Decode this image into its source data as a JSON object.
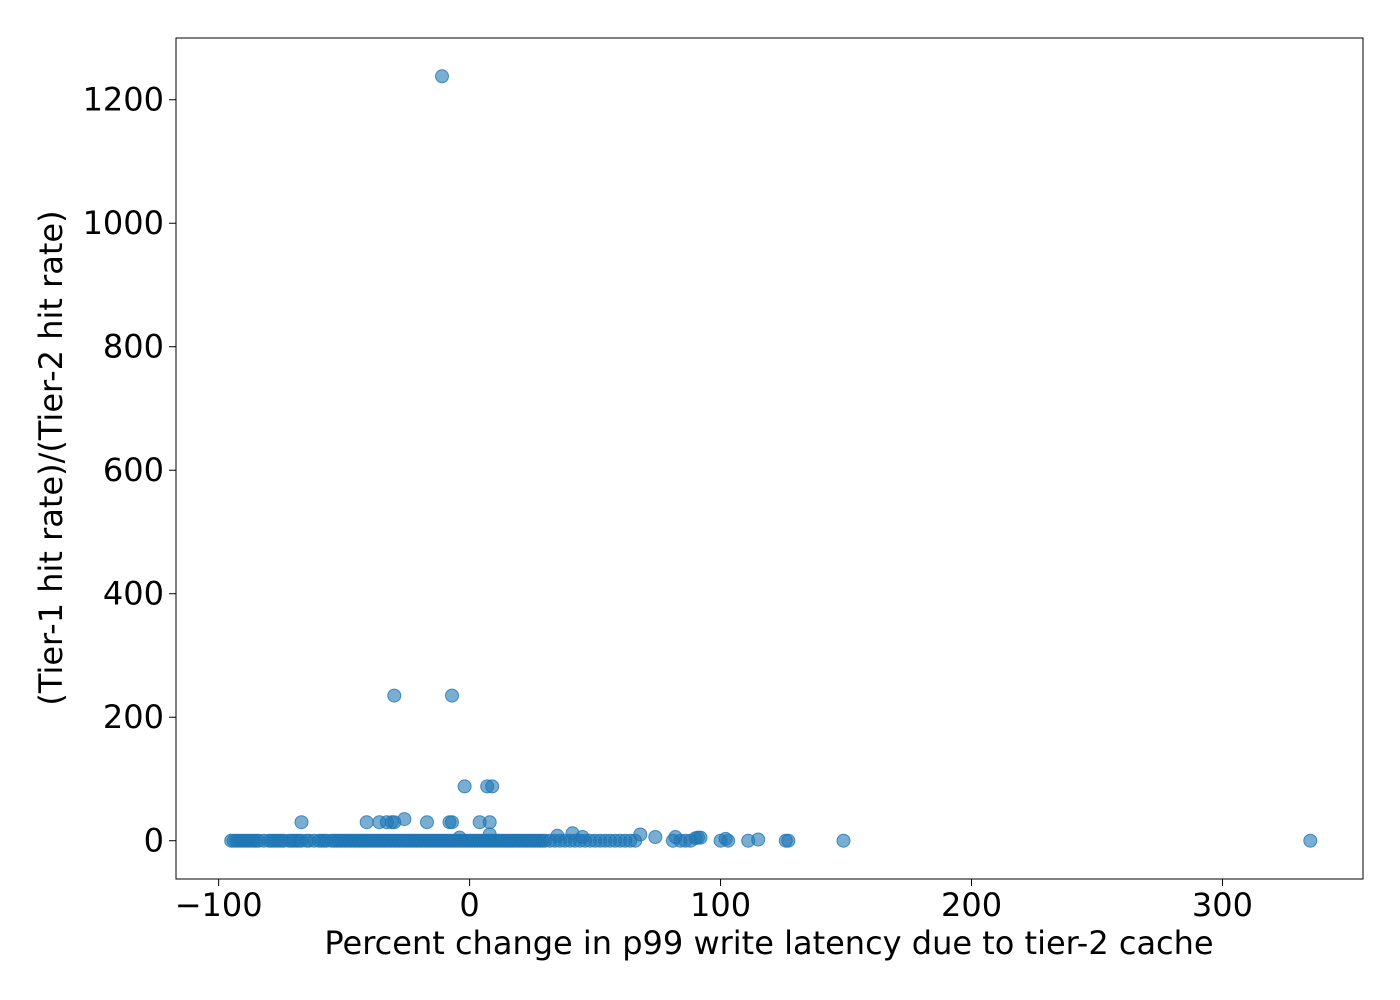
{
  "chart_data": {
    "type": "scatter",
    "title": "",
    "xlabel": "Percent change in p99 write latency due to tier-2 cache",
    "ylabel": "(Tier-1 hit rate)/(Tier-2 hit rate)",
    "xlim": [
      -117,
      356
    ],
    "ylim": [
      -62,
      1300
    ],
    "xticks": [
      -100,
      0,
      100,
      200,
      300
    ],
    "xtick_labels": [
      "−100",
      "0",
      "100",
      "200",
      "300"
    ],
    "yticks": [
      0,
      200,
      400,
      600,
      800,
      1000,
      1200
    ],
    "ytick_labels": [
      "0",
      "200",
      "400",
      "600",
      "800",
      "1000",
      "1200"
    ],
    "grid": false,
    "legend": "none",
    "marker_color": "#1f77b4",
    "series": [
      {
        "x": [
          -95,
          -94,
          -93,
          -92,
          -91,
          -90,
          -89,
          -88,
          -87,
          -86,
          -85,
          -84,
          -82,
          -80,
          -79,
          -78,
          -77,
          -76,
          -75,
          -74,
          -72,
          -71,
          -70,
          -69,
          -68,
          -67,
          -65,
          -64,
          -62,
          -60,
          -59,
          -58,
          -57,
          -55,
          -54,
          -53,
          -52,
          -51,
          -50,
          -49,
          -48,
          -47,
          -46,
          -45,
          -44,
          -43,
          -42,
          -41,
          -40,
          -39,
          -38,
          -37,
          -36,
          -35,
          -34,
          -33,
          -32,
          -31,
          -30,
          -29,
          -28,
          -27,
          -26,
          -25,
          -24,
          -23,
          -22,
          -21,
          -20,
          -19,
          -18,
          -17,
          -16,
          -15,
          -14,
          -13,
          -12,
          -11,
          -10,
          -9,
          -8,
          -7,
          -6,
          -5,
          -4,
          -3,
          -2,
          -1,
          0,
          1,
          2,
          3,
          4,
          5,
          6,
          7,
          8,
          9,
          10,
          11,
          12,
          13,
          14,
          15,
          16,
          17,
          18,
          19,
          20,
          21,
          22,
          23,
          24,
          25,
          26,
          27,
          28,
          29,
          30,
          32,
          34,
          36,
          38,
          40,
          42,
          44,
          46,
          48,
          50,
          52,
          54,
          56,
          58,
          60,
          62,
          64,
          66,
          81,
          84,
          86,
          88,
          100,
          103,
          111,
          126,
          127,
          149,
          335,
          -67,
          -41,
          -36,
          -33,
          -31,
          -30,
          -26,
          -17,
          -8,
          -7,
          4,
          8,
          35,
          41,
          45,
          68,
          74,
          82,
          90,
          91,
          92,
          102,
          115,
          -11,
          -30,
          -7,
          -2,
          7,
          9,
          -4,
          8
        ],
        "y": [
          0,
          0,
          0,
          0,
          0,
          0,
          0,
          0,
          0,
          0,
          0,
          0,
          0,
          0,
          0,
          0,
          0,
          0,
          0,
          0,
          0,
          0,
          0,
          0,
          0,
          0,
          0,
          0,
          0,
          0,
          0,
          0,
          0,
          0,
          0,
          0,
          0,
          0,
          0,
          0,
          0,
          0,
          0,
          0,
          0,
          0,
          0,
          0,
          0,
          0,
          0,
          0,
          0,
          0,
          0,
          0,
          0,
          0,
          0,
          0,
          0,
          0,
          0,
          0,
          0,
          0,
          0,
          0,
          0,
          0,
          0,
          0,
          0,
          0,
          0,
          0,
          0,
          0,
          0,
          0,
          0,
          0,
          0,
          0,
          0,
          0,
          0,
          0,
          0,
          0,
          0,
          0,
          0,
          0,
          0,
          0,
          0,
          0,
          0,
          0,
          0,
          0,
          0,
          0,
          0,
          0,
          0,
          0,
          0,
          0,
          0,
          0,
          0,
          0,
          0,
          0,
          0,
          0,
          0,
          0,
          0,
          0,
          0,
          0,
          0,
          0,
          0,
          0,
          0,
          0,
          0,
          0,
          0,
          0,
          0,
          0,
          0,
          0,
          0,
          0,
          0,
          0,
          0,
          0,
          0,
          0,
          0,
          0,
          30,
          30,
          30,
          30,
          30,
          30,
          35,
          30,
          30,
          30,
          30,
          30,
          8,
          12,
          6,
          10,
          6,
          6,
          4,
          5,
          5,
          3,
          2,
          1238,
          235,
          235,
          88,
          88,
          88,
          5,
          10
        ]
      }
    ]
  }
}
